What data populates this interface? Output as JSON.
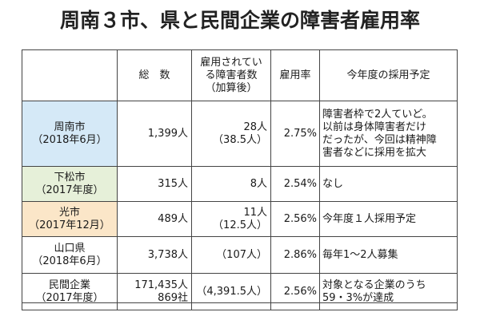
{
  "title": "周南３市、県と民間企業の障害者雇用率",
  "header": {
    "total": "総　数",
    "workers": [
      "雇用されてい",
      "る障害者数",
      "（加算後）"
    ],
    "rate": "雇用率",
    "plan": "今年度の採用予定"
  },
  "rows": [
    {
      "name": "周南市",
      "period": "（2018年6月）",
      "color": "#d5e9f7",
      "total": [
        "1,399人"
      ],
      "workers": [
        "28人",
        "（38.5人）"
      ],
      "rate": "2.75%",
      "plan": [
        "障害者枠で2人ていど。",
        "以前は身体障害者だけ",
        "だったが、今回は精神障",
        "害者などに採用を拡大"
      ]
    },
    {
      "name": "下松市",
      "period": "（2017年度）",
      "color": "#e6f0d9",
      "total": [
        "315人"
      ],
      "workers": [
        "8人"
      ],
      "rate": "2.54%",
      "plan": [
        "なし"
      ]
    },
    {
      "name": "光市",
      "period": "（2017年12月）",
      "color": "#fbe6c8",
      "total": [
        "489人"
      ],
      "workers": [
        "11人",
        "（12.5人）"
      ],
      "rate": "2.56%",
      "plan": [
        "今年度１人採用予定"
      ]
    },
    {
      "name": "山口県",
      "period": "（2018年6月）",
      "color": "#ffffff",
      "total": [
        "3,738人"
      ],
      "workers": [
        "（107人）"
      ],
      "rate": "2.86%",
      "plan": [
        "毎年1～2人募集"
      ]
    },
    {
      "name": "民間企業",
      "period": "（2017年度）",
      "color": "#ffffff",
      "total": [
        "171,435人",
        "869社"
      ],
      "workers": [
        "（4,391.5人）"
      ],
      "rate": "2.56%",
      "plan": [
        "対象となる企業のうち",
        "59・3%が達成"
      ]
    }
  ]
}
